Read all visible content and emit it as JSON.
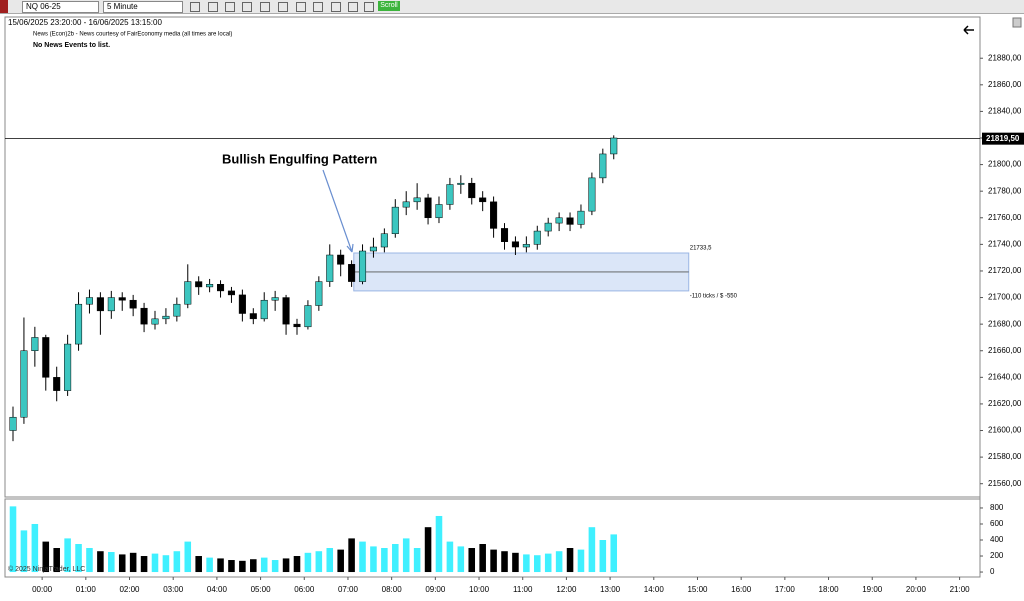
{
  "toolbar": {
    "instrument": "NQ 06-25",
    "interval": "5 Minute",
    "scroll_button": "Scroll"
  },
  "header": {
    "date_range": "15/06/2025 23:20:00 - 16/06/2025 13:15:00",
    "news_source": "News (Econ)2b - News courtesy of FairEconomy media (all times are local)",
    "news_status": "No News Events to list."
  },
  "chart_data": {
    "type": "candlestick",
    "annotation": "Bullish Engulfing Pattern",
    "copyright": "© 2025 NinjaTrader, LLC",
    "up_color": "#3cc6c0",
    "down_color": "#000000",
    "volume_up_color": "#3ff0ff",
    "volume_down_color": "#000000",
    "x": [
      -40,
      -25,
      -10,
      5,
      20,
      35,
      50,
      65,
      80,
      95,
      110,
      125,
      140,
      155,
      170,
      185,
      200,
      215,
      230,
      245,
      260,
      275,
      290,
      305,
      320,
      335,
      350,
      365,
      380,
      395,
      410,
      425,
      440,
      455,
      470,
      485,
      500,
      515,
      530,
      545,
      560,
      575,
      590,
      605,
      620,
      635,
      650,
      665,
      680,
      695,
      710,
      725,
      740,
      755,
      770,
      785
    ],
    "open": [
      21600,
      21610,
      21660,
      21670,
      21640,
      21630,
      21665,
      21695,
      21700,
      21690,
      21700,
      21698,
      21692,
      21680,
      21684,
      21686,
      21695,
      21712,
      21708,
      21710,
      21705,
      21702,
      21688,
      21684,
      21698,
      21700,
      21680,
      21678,
      21694,
      21712,
      21732,
      21725,
      21712,
      21735,
      21738,
      21748,
      21768,
      21772,
      21775,
      21760,
      21770,
      21785,
      21786,
      21775,
      21772,
      21752,
      21742,
      21738,
      21740,
      21750,
      21756,
      21760,
      21755,
      21765,
      21790,
      21808
    ],
    "high": [
      21618,
      21685,
      21678,
      21672,
      21648,
      21672,
      21704,
      21706,
      21704,
      21705,
      21704,
      21702,
      21696,
      21690,
      21692,
      21700,
      21725,
      21716,
      21714,
      21713,
      21708,
      21706,
      21692,
      21704,
      21705,
      21702,
      21684,
      21698,
      21716,
      21740,
      21736,
      21728,
      21740,
      21745,
      21752,
      21774,
      21780,
      21786,
      21778,
      21776,
      21790,
      21792,
      21790,
      21780,
      21776,
      21756,
      21746,
      21746,
      21754,
      21760,
      21764,
      21764,
      21770,
      21794,
      21812,
      21822
    ],
    "low": [
      21592,
      21605,
      21648,
      21630,
      21622,
      21626,
      21660,
      21688,
      21672,
      21684,
      21690,
      21686,
      21674,
      21676,
      21680,
      21682,
      21692,
      21702,
      21704,
      21700,
      21696,
      21682,
      21680,
      21682,
      21690,
      21672,
      21672,
      21676,
      21690,
      21708,
      21716,
      21708,
      21710,
      21730,
      21734,
      21745,
      21762,
      21766,
      21755,
      21756,
      21766,
      21778,
      21770,
      21765,
      21745,
      21736,
      21732,
      21734,
      21736,
      21746,
      21750,
      21750,
      21752,
      21762,
      21786,
      21804
    ],
    "close": [
      21610,
      21660,
      21670,
      21640,
      21630,
      21665,
      21695,
      21700,
      21690,
      21700,
      21698,
      21692,
      21680,
      21684,
      21686,
      21695,
      21712,
      21708,
      21710,
      21705,
      21702,
      21688,
      21684,
      21698,
      21700,
      21680,
      21678,
      21694,
      21712,
      21732,
      21725,
      21712,
      21735,
      21738,
      21748,
      21768,
      21772,
      21775,
      21760,
      21770,
      21785,
      21786,
      21775,
      21772,
      21752,
      21742,
      21738,
      21740,
      21750,
      21756,
      21760,
      21755,
      21765,
      21790,
      21808,
      21820
    ],
    "volume": [
      820,
      520,
      600,
      380,
      300,
      420,
      350,
      300,
      260,
      250,
      220,
      240,
      200,
      230,
      210,
      260,
      380,
      200,
      180,
      170,
      150,
      140,
      160,
      180,
      150,
      170,
      200,
      240,
      260,
      300,
      280,
      420,
      380,
      320,
      300,
      350,
      420,
      300,
      560,
      700,
      380,
      320,
      300,
      350,
      280,
      260,
      240,
      220,
      210,
      230,
      260,
      300,
      280,
      560,
      400,
      470
    ],
    "xlim": [
      -51,
      1288
    ],
    "xticks": [
      {
        "value": 0,
        "label": "00:00"
      },
      {
        "value": 60,
        "label": "01:00"
      },
      {
        "value": 120,
        "label": "02:00"
      },
      {
        "value": 180,
        "label": "03:00"
      },
      {
        "value": 240,
        "label": "04:00"
      },
      {
        "value": 300,
        "label": "05:00"
      },
      {
        "value": 360,
        "label": "06:00"
      },
      {
        "value": 420,
        "label": "07:00"
      },
      {
        "value": 480,
        "label": "08:00"
      },
      {
        "value": 540,
        "label": "09:00"
      },
      {
        "value": 600,
        "label": "10:00"
      },
      {
        "value": 660,
        "label": "11:00"
      },
      {
        "value": 720,
        "label": "12:00"
      },
      {
        "value": 780,
        "label": "13:00"
      },
      {
        "value": 840,
        "label": "14:00"
      },
      {
        "value": 900,
        "label": "15:00"
      },
      {
        "value": 960,
        "label": "16:00"
      },
      {
        "value": 1020,
        "label": "17:00"
      },
      {
        "value": 1080,
        "label": "18:00"
      },
      {
        "value": 1140,
        "label": "19:00"
      },
      {
        "value": 1200,
        "label": "20:00"
      },
      {
        "value": 1260,
        "label": "21:00"
      }
    ],
    "ylim": [
      21550,
      21911
    ],
    "yticks": [
      {
        "value": 21560,
        "label": "21560,00"
      },
      {
        "value": 21580,
        "label": "21580,00"
      },
      {
        "value": 21600,
        "label": "21600,00"
      },
      {
        "value": 21620,
        "label": "21620,00"
      },
      {
        "value": 21640,
        "label": "21640,00"
      },
      {
        "value": 21660,
        "label": "21660,00"
      },
      {
        "value": 21680,
        "label": "21680,00"
      },
      {
        "value": 21700,
        "label": "21700,00"
      },
      {
        "value": 21720,
        "label": "21720,00"
      },
      {
        "value": 21740,
        "label": "21740,00"
      },
      {
        "value": 21760,
        "label": "21760,00"
      },
      {
        "value": 21780,
        "label": "21780,00"
      },
      {
        "value": 21800,
        "label": "21800,00"
      },
      {
        "value": 21820,
        "label": "21820,00"
      },
      {
        "value": 21840,
        "label": "21840,00"
      },
      {
        "value": 21860,
        "label": "21860,00"
      },
      {
        "value": 21880,
        "label": "21880,00"
      }
    ],
    "volume_lim": [
      -62,
      912
    ],
    "volume_ticks": [
      0,
      200,
      400,
      600,
      800
    ],
    "price_line": {
      "value": 21819.5,
      "label": "21819,50"
    },
    "zone": {
      "start": 428,
      "end": 888,
      "top": {
        "value": 21733.5,
        "label": "21733,5"
      },
      "bottom": 21705,
      "mid": 21719.25,
      "risk_label": "-110 ticks / $ -550"
    }
  }
}
